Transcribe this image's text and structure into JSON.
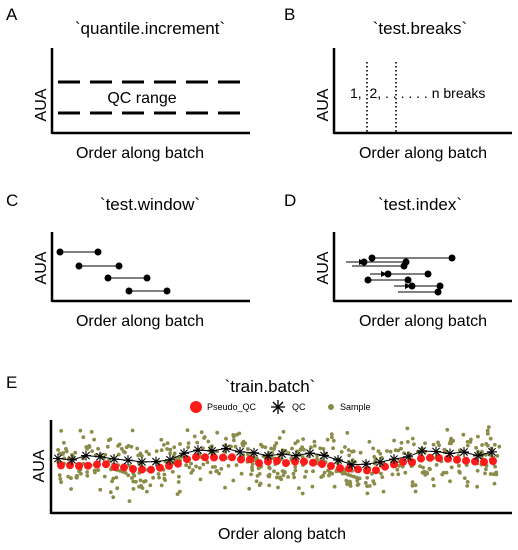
{
  "panels": {
    "A": {
      "letter": "A",
      "title": "`quantile.increment`",
      "ylabel": "AUA",
      "xlabel": "Order along batch",
      "band_label": "QC range"
    },
    "B": {
      "letter": "B",
      "title": "`test.breaks`",
      "ylabel": "AUA",
      "xlabel": "Order along batch",
      "break_label": "1,  2, . . . . . . n breaks"
    },
    "C": {
      "letter": "C",
      "title": "`test.window`",
      "ylabel": "AUA",
      "xlabel": "Order along batch"
    },
    "D": {
      "letter": "D",
      "title": "`test.index`",
      "ylabel": "AUA",
      "xlabel": "Order along batch"
    },
    "E": {
      "letter": "E",
      "title": "`train.batch`",
      "ylabel": "AUA",
      "xlabel": "Order along batch",
      "legend": [
        {
          "label": "Pseudo_QC",
          "color": "#ff1a1a",
          "icon": "filled-circle-icon"
        },
        {
          "label": "QC",
          "color": "#000000",
          "icon": "asterisk-icon"
        },
        {
          "label": "Sample",
          "color": "#8b8b4a",
          "icon": "small-dot-icon"
        }
      ]
    }
  },
  "colors": {
    "pseudo_qc": "#ff1a1a",
    "qc": "#000000",
    "sample": "#8b8b4a"
  }
}
